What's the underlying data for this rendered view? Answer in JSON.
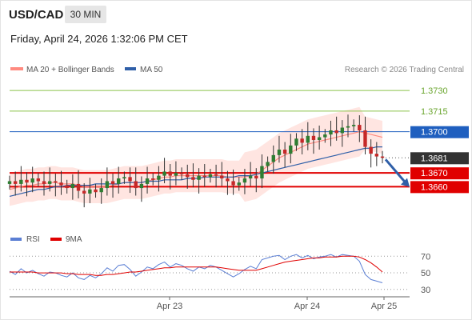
{
  "header": {
    "symbol": "USD/CAD",
    "timeframe": "30 MIN",
    "datetime": "Friday, April 24, 2026 1:32:06 PM CET"
  },
  "legend": {
    "ma20": "MA 20 + Bollinger Bands",
    "ma50": "MA 50",
    "rsi": "RSI",
    "ma9": "9MA"
  },
  "colors": {
    "ma20": "#ff8a80",
    "band_fill": "#ffe0dc",
    "ma50": "#2f5fa8",
    "rsi": "#5b7fd4",
    "ma9": "#e00000",
    "resistance": "#8bc34a",
    "pivot": "#1f5fbf",
    "support": "#e00000",
    "current": "#333333",
    "arrow": "#2f5fa8",
    "candle_up": "#2e7d32",
    "candle_down": "#c62828"
  },
  "copyright": "Research © 2026 Trading Central",
  "chart_data": [
    {
      "type": "candlestick",
      "title": "USD/CAD",
      "xlabel": "",
      "ylabel": "",
      "x_ticks": [
        "Apr 23",
        "Apr 24",
        "Apr 25"
      ],
      "ylim": [
        1.3627,
        1.3747
      ],
      "legend_position": "top-left",
      "grid": false,
      "levels": [
        {
          "label": "1.3730",
          "value": 1.373,
          "kind": "resistance"
        },
        {
          "label": "1.3715",
          "value": 1.3715,
          "kind": "resistance"
        },
        {
          "label": "1.3700",
          "value": 1.37,
          "kind": "pivot"
        },
        {
          "label": "1.3681",
          "value": 1.3681,
          "kind": "current"
        },
        {
          "label": "1.3670",
          "value": 1.367,
          "kind": "support"
        },
        {
          "label": "1.3660",
          "value": 1.366,
          "kind": "support"
        }
      ],
      "close_series": [
        1.3664,
        1.3662,
        1.3665,
        1.3663,
        1.3666,
        1.3664,
        1.3662,
        1.3664,
        1.3663,
        1.3661,
        1.3659,
        1.3662,
        1.3657,
        1.3655,
        1.3658,
        1.3656,
        1.3659,
        1.3664,
        1.3662,
        1.3666,
        1.3667,
        1.3664,
        1.3659,
        1.3662,
        1.3666,
        1.3665,
        1.3668,
        1.3671,
        1.3668,
        1.367,
        1.3669,
        1.3667,
        1.3665,
        1.3668,
        1.3667,
        1.3669,
        1.3668,
        1.3666,
        1.3664,
        1.3661,
        1.3663,
        1.3666,
        1.3668,
        1.3666,
        1.3675,
        1.3678,
        1.3683,
        1.3687,
        1.3684,
        1.369,
        1.3695,
        1.3692,
        1.3697,
        1.3694,
        1.3696,
        1.3698,
        1.3701,
        1.3699,
        1.3703,
        1.3704,
        1.3705,
        1.3701,
        1.3689,
        1.3684,
        1.3682,
        1.3681
      ],
      "ma20_series": [
        1.3658,
        1.3659,
        1.366,
        1.3661,
        1.3661,
        1.3662,
        1.3662,
        1.3663,
        1.3663,
        1.3662,
        1.3662,
        1.3662,
        1.3661,
        1.366,
        1.366,
        1.366,
        1.366,
        1.366,
        1.3661,
        1.3662,
        1.3663,
        1.3663,
        1.3663,
        1.3663,
        1.3664,
        1.3665,
        1.3666,
        1.3667,
        1.3667,
        1.3668,
        1.3668,
        1.3668,
        1.3668,
        1.3668,
        1.3668,
        1.3668,
        1.3668,
        1.3668,
        1.3667,
        1.3667,
        1.3667,
        1.3667,
        1.3668,
        1.3669,
        1.3672,
        1.3675,
        1.3678,
        1.3681,
        1.3683,
        1.3685,
        1.3687,
        1.3689,
        1.3691,
        1.3692,
        1.3693,
        1.3694,
        1.3695,
        1.3696,
        1.3697,
        1.3698,
        1.3699,
        1.37,
        1.3699,
        1.3698,
        1.3697,
        1.3696
      ],
      "ma50_series": [
        1.3653,
        1.3654,
        1.3655,
        1.3656,
        1.3657,
        1.3658,
        1.3658,
        1.3659,
        1.366,
        1.366,
        1.3661,
        1.3661,
        1.3661,
        1.3661,
        1.3661,
        1.3662,
        1.3662,
        1.3662,
        1.3662,
        1.3662,
        1.3663,
        1.3663,
        1.3663,
        1.3663,
        1.3664,
        1.3664,
        1.3664,
        1.3665,
        1.3665,
        1.3665,
        1.3665,
        1.3666,
        1.3666,
        1.3666,
        1.3667,
        1.3667,
        1.3667,
        1.3667,
        1.3667,
        1.3667,
        1.3668,
        1.3668,
        1.3668,
        1.3669,
        1.367,
        1.3671,
        1.3672,
        1.3673,
        1.3674,
        1.3675,
        1.3676,
        1.3677,
        1.3678,
        1.3679,
        1.368,
        1.3681,
        1.3682,
        1.3683,
        1.3684,
        1.3685,
        1.3686,
        1.3687,
        1.3688,
        1.3688,
        1.3689,
        1.3689
      ]
    },
    {
      "type": "line",
      "title": "RSI",
      "ylim": [
        25,
        78
      ],
      "y_ticks": [
        70,
        50,
        30
      ],
      "series": [
        {
          "name": "RSI",
          "values": [
            52,
            48,
            55,
            50,
            53,
            49,
            46,
            51,
            50,
            47,
            45,
            50,
            44,
            42,
            47,
            44,
            49,
            56,
            52,
            59,
            60,
            54,
            46,
            51,
            57,
            55,
            60,
            63,
            57,
            61,
            59,
            55,
            52,
            57,
            55,
            59,
            57,
            53,
            49,
            45,
            49,
            54,
            58,
            55,
            66,
            68,
            70,
            71,
            66,
            70,
            72,
            68,
            71,
            67,
            69,
            70,
            72,
            69,
            72,
            71,
            70,
            64,
            48,
            42,
            40,
            38
          ]
        },
        {
          "name": "9MA",
          "values": [
            51,
            51,
            51,
            51,
            51,
            50,
            50,
            50,
            50,
            50,
            49,
            49,
            48,
            48,
            48,
            47,
            47,
            48,
            48,
            49,
            50,
            51,
            51,
            52,
            53,
            54,
            55,
            56,
            56,
            57,
            57,
            57,
            57,
            57,
            57,
            57,
            57,
            56,
            55,
            54,
            53,
            53,
            53,
            53,
            55,
            57,
            59,
            61,
            63,
            64,
            65,
            66,
            67,
            68,
            68,
            69,
            69,
            69,
            70,
            70,
            70,
            69,
            66,
            62,
            57,
            51
          ]
        }
      ]
    }
  ]
}
